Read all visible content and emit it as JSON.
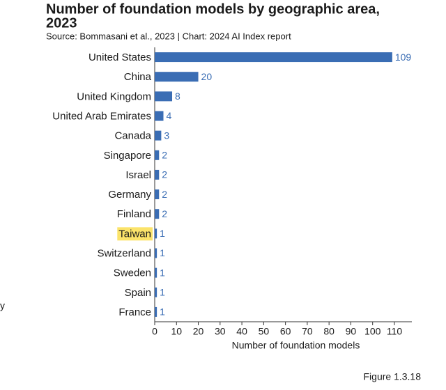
{
  "chart_data": {
    "type": "bar",
    "orientation": "horizontal",
    "title": [
      "Number of foundation models by geographic area,",
      "2023"
    ],
    "subtitle": "Source: Bommasani et al., 2023 | Chart: 2024 AI Index report",
    "categories": [
      "United States",
      "China",
      "United Kingdom",
      "United Arab Emirates",
      "Canada",
      "Singapore",
      "Israel",
      "Germany",
      "Finland",
      "Taiwan",
      "Switzerland",
      "Sweden",
      "Spain",
      "France"
    ],
    "values": [
      109,
      20,
      8,
      4,
      3,
      2,
      2,
      2,
      2,
      1,
      1,
      1,
      1,
      1
    ],
    "color": "#3a6db4",
    "xlim": [
      0,
      118
    ],
    "xticks": [
      0,
      10,
      20,
      30,
      40,
      50,
      60,
      70,
      80,
      90,
      100,
      110
    ],
    "xlabel": "Number of foundation models",
    "highlight": {
      "category_index": 9,
      "color": "#fbe36a"
    }
  },
  "figure_label": "Figure 1.3.18",
  "edge_fragment": "y"
}
